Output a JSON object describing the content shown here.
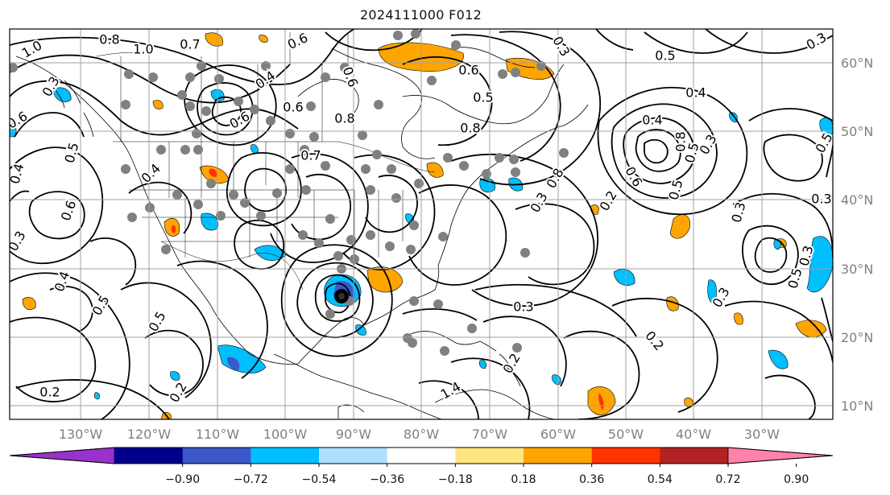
{
  "title": "2024111000 F012",
  "map": {
    "lon_labels": [
      "130°W",
      "120°W",
      "110°W",
      "100°W",
      "90°W",
      "80°W",
      "70°W",
      "60°W",
      "50°W",
      "40°W",
      "30°W"
    ],
    "lat_labels": [
      "60°N",
      "50°N",
      "40°N",
      "30°N",
      "20°N",
      "10°N"
    ],
    "contour_labels": [
      "1.0",
      "0.8",
      "1.0",
      "0.7",
      "0.6",
      "0.4",
      "0.6",
      "0.8",
      "0.6",
      "0.3",
      "0.6",
      "0.5",
      "0.8",
      "0.7",
      "0.4",
      "0.3",
      "0.5",
      "0.4",
      "0.2",
      "0.3",
      "0.5",
      "0.4",
      "0.3",
      "0.6",
      "0.6",
      "0.5",
      "0.4",
      "0.5",
      "0.5",
      "0.2",
      "0.2",
      "0.2",
      "0.3",
      "0.3",
      "0.2",
      "1.4",
      "0.4",
      "0.6",
      "0.8",
      "0.3",
      "0.8",
      "0.3",
      "0.5",
      "0.5",
      "0.3",
      "0.3",
      "0.3",
      "0.6",
      "0.5"
    ]
  },
  "colorbar": {
    "tick_labels": [
      "−0.90",
      "−0.72",
      "−0.54",
      "−0.36",
      "−0.18",
      "0.18",
      "0.36",
      "0.54",
      "0.72",
      "0.90"
    ],
    "colors": [
      "#9932cc",
      "#00008b",
      "#3a58c8",
      "#00bfff",
      "#afdfff",
      "#ffffff",
      "#ffe680",
      "#ffa500",
      "#ff3300",
      "#b22222",
      "#ff82ab"
    ]
  },
  "colors": {
    "positive_fill": "#ffa500",
    "negative_fill": "#00bfff",
    "contour": "#000000",
    "gridline": "#a0a0a0",
    "marker": "#808080"
  }
}
